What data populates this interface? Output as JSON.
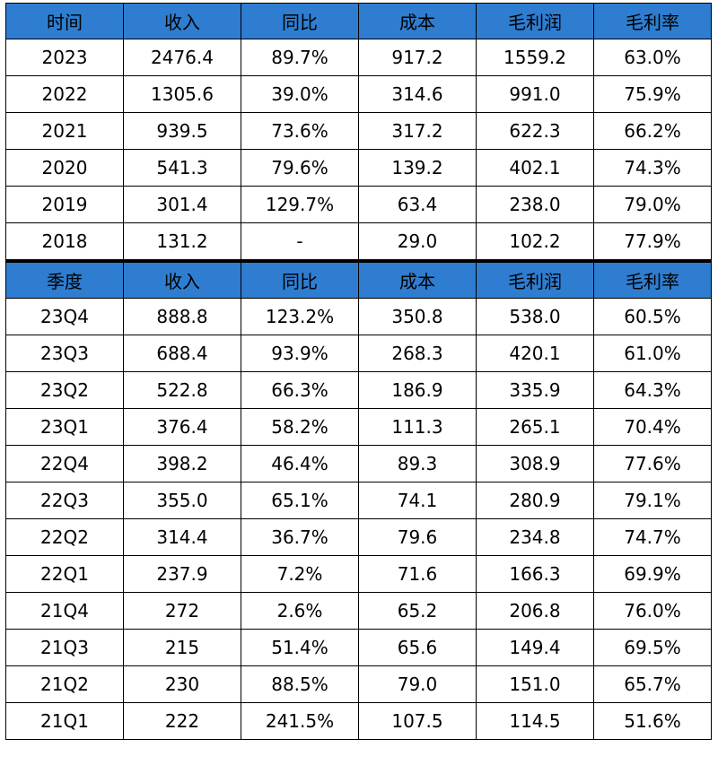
{
  "colors": {
    "header_bg": "#2E7DD0",
    "border": "#000000",
    "text": "#000000"
  },
  "chart_data": [
    {
      "type": "table",
      "columns": [
        "时间",
        "收入",
        "同比",
        "成本",
        "毛利润",
        "毛利率"
      ],
      "rows": [
        [
          "2023",
          "2476.4",
          "89.7%",
          "917.2",
          "1559.2",
          "63.0%"
        ],
        [
          "2022",
          "1305.6",
          "39.0%",
          "314.6",
          "991.0",
          "75.9%"
        ],
        [
          "2021",
          "939.5",
          "73.6%",
          "317.2",
          "622.3",
          "66.2%"
        ],
        [
          "2020",
          "541.3",
          "79.6%",
          "139.2",
          "402.1",
          "74.3%"
        ],
        [
          "2019",
          "301.4",
          "129.7%",
          "63.4",
          "238.0",
          "79.0%"
        ],
        [
          "2018",
          "131.2",
          "-",
          "29.0",
          "102.2",
          "77.9%"
        ]
      ]
    },
    {
      "type": "table",
      "columns": [
        "季度",
        "收入",
        "同比",
        "成本",
        "毛利润",
        "毛利率"
      ],
      "rows": [
        [
          "23Q4",
          "888.8",
          "123.2%",
          "350.8",
          "538.0",
          "60.5%"
        ],
        [
          "23Q3",
          "688.4",
          "93.9%",
          "268.3",
          "420.1",
          "61.0%"
        ],
        [
          "23Q2",
          "522.8",
          "66.3%",
          "186.9",
          "335.9",
          "64.3%"
        ],
        [
          "23Q1",
          "376.4",
          "58.2%",
          "111.3",
          "265.1",
          "70.4%"
        ],
        [
          "22Q4",
          "398.2",
          "46.4%",
          "89.3",
          "308.9",
          "77.6%"
        ],
        [
          "22Q3",
          "355.0",
          "65.1%",
          "74.1",
          "280.9",
          "79.1%"
        ],
        [
          "22Q2",
          "314.4",
          "36.7%",
          "79.6",
          "234.8",
          "74.7%"
        ],
        [
          "22Q1",
          "237.9",
          "7.2%",
          "71.6",
          "166.3",
          "69.9%"
        ],
        [
          "21Q4",
          "272",
          "2.6%",
          "65.2",
          "206.8",
          "76.0%"
        ],
        [
          "21Q3",
          "215",
          "51.4%",
          "65.6",
          "149.4",
          "69.5%"
        ],
        [
          "21Q2",
          "230",
          "88.5%",
          "79.0",
          "151.0",
          "65.7%"
        ],
        [
          "21Q1",
          "222",
          "241.5%",
          "107.5",
          "114.5",
          "51.6%"
        ]
      ]
    }
  ]
}
